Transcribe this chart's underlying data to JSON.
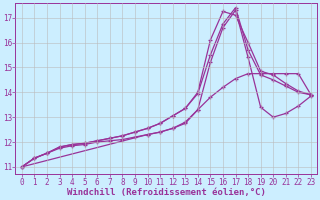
{
  "xlabel": "Windchill (Refroidissement éolien,°C)",
  "bg_color": "#cceeff",
  "grid_color": "#bbbbbb",
  "line_color": "#993399",
  "xlim": [
    -0.5,
    23.5
  ],
  "ylim": [
    10.7,
    17.6
  ],
  "xticks": [
    0,
    1,
    2,
    3,
    4,
    5,
    6,
    7,
    8,
    9,
    10,
    11,
    12,
    13,
    14,
    15,
    16,
    17,
    18,
    19,
    20,
    21,
    22,
    23
  ],
  "yticks": [
    11,
    12,
    13,
    14,
    15,
    16,
    17
  ],
  "line1_x": [
    0,
    1,
    2,
    3,
    4,
    5,
    6,
    7,
    8,
    9,
    10,
    11,
    12,
    13,
    14,
    15,
    16,
    17,
    18,
    19,
    20,
    21,
    22,
    23
  ],
  "line1_y": [
    11.0,
    11.35,
    11.55,
    11.75,
    11.85,
    11.9,
    12.0,
    12.05,
    12.1,
    12.2,
    12.3,
    12.4,
    12.55,
    12.75,
    13.3,
    15.2,
    16.6,
    17.3,
    15.4,
    13.4,
    13.0,
    13.15,
    13.45,
    13.85
  ],
  "line2_x": [
    0,
    1,
    2,
    3,
    4,
    5,
    6,
    7,
    8,
    9,
    10,
    11,
    12,
    13,
    14,
    15,
    16,
    17,
    18,
    19,
    20,
    21,
    22,
    23
  ],
  "line2_y": [
    11.0,
    11.35,
    11.55,
    11.8,
    11.9,
    11.95,
    12.05,
    12.15,
    12.25,
    12.4,
    12.55,
    12.75,
    13.05,
    13.35,
    13.95,
    15.5,
    16.75,
    17.4,
    15.7,
    14.7,
    14.5,
    14.25,
    14.0,
    13.9
  ],
  "line3_x": [
    0,
    1,
    2,
    3,
    4,
    5,
    6,
    7,
    8,
    9,
    10,
    11,
    12,
    13,
    14,
    15,
    16,
    17,
    18,
    19,
    20,
    21,
    22,
    23
  ],
  "line3_y": [
    11.0,
    11.35,
    11.55,
    11.8,
    11.9,
    11.95,
    12.05,
    12.15,
    12.25,
    12.4,
    12.55,
    12.75,
    13.05,
    13.35,
    14.0,
    16.1,
    17.25,
    17.1,
    16.0,
    14.85,
    14.7,
    14.35,
    14.05,
    13.9
  ],
  "line4_x": [
    0,
    10,
    11,
    12,
    13,
    14,
    15,
    16,
    17,
    18,
    19,
    20,
    21,
    22,
    23
  ],
  "line4_y": [
    11.0,
    12.3,
    12.4,
    12.55,
    12.8,
    13.3,
    13.8,
    14.2,
    14.55,
    14.75,
    14.75,
    14.75,
    14.75,
    14.75,
    13.9
  ],
  "marker": "+",
  "markersize": 3.5,
  "linewidth": 0.9,
  "xlabel_fontsize": 6.5,
  "tick_fontsize": 5.5
}
